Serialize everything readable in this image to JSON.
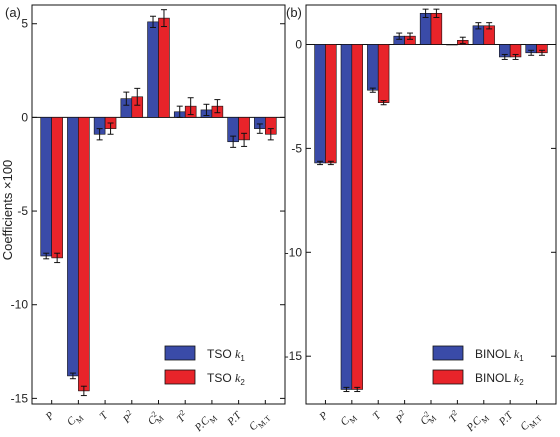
{
  "ylabel": "Coefficients ×100",
  "colors": {
    "series1": "#3a4ba8",
    "series2": "#e8242a",
    "edge": "#111111"
  },
  "chart_data": [
    {
      "type": "bar",
      "panel_label": "(a)",
      "ylabel": "Coefficients ×100",
      "ylim": [
        -15.3,
        6.0
      ],
      "yticks": [
        -15,
        -10,
        -5,
        0,
        5
      ],
      "ytick_labels": [
        "-15",
        "-10",
        "-5",
        "0",
        "5"
      ],
      "categories": [
        {
          "main": "P",
          "sup": "",
          "sub": ""
        },
        {
          "main": "C",
          "sup": "",
          "sub": "M"
        },
        {
          "main": "T",
          "sup": "",
          "sub": ""
        },
        {
          "main": "P",
          "sup": "2",
          "sub": ""
        },
        {
          "main": "C",
          "sup": "2",
          "sub": "M"
        },
        {
          "main": "T",
          "sup": "2",
          "sub": ""
        },
        {
          "main": "P.C",
          "sup": "",
          "sub": "M"
        },
        {
          "main": "P.T",
          "sup": "",
          "sub": ""
        },
        {
          "main": "C",
          "sup": "",
          "sub": "M.T"
        }
      ],
      "series": [
        {
          "name": "TSO k1",
          "legend_main": "TSO k",
          "legend_sub": "1",
          "values": [
            -7.4,
            -13.8,
            -0.9,
            1.0,
            5.1,
            0.3,
            0.4,
            -1.3,
            -0.6
          ],
          "errors": [
            0.15,
            0.15,
            0.3,
            0.35,
            0.3,
            0.3,
            0.3,
            0.3,
            0.25
          ]
        },
        {
          "name": "TSO k2",
          "legend_main": "TSO k",
          "legend_sub": "2",
          "values": [
            -7.5,
            -14.6,
            -0.6,
            1.1,
            5.3,
            0.6,
            0.6,
            -1.2,
            -0.9
          ],
          "errors": [
            0.25,
            0.25,
            0.3,
            0.45,
            0.45,
            0.45,
            0.35,
            0.35,
            0.3
          ]
        }
      ],
      "legend_position": "bottom-right"
    },
    {
      "type": "bar",
      "panel_label": "(b)",
      "ylim": [
        -17.3,
        1.9
      ],
      "yticks": [
        -15,
        -10,
        -5,
        0
      ],
      "ytick_labels": [
        "-15",
        "-10",
        "-5",
        "0"
      ],
      "categories": [
        {
          "main": "P",
          "sup": "",
          "sub": ""
        },
        {
          "main": "C",
          "sup": "",
          "sub": "M"
        },
        {
          "main": "T",
          "sup": "",
          "sub": ""
        },
        {
          "main": "P",
          "sup": "2",
          "sub": ""
        },
        {
          "main": "C",
          "sup": "2",
          "sub": "M"
        },
        {
          "main": "T",
          "sup": "2",
          "sub": ""
        },
        {
          "main": "P.C",
          "sup": "",
          "sub": "M"
        },
        {
          "main": "P.T",
          "sup": "",
          "sub": ""
        },
        {
          "main": "C",
          "sup": "",
          "sub": "M.T"
        }
      ],
      "series": [
        {
          "name": "BINOL k1",
          "legend_main": "BINOL k",
          "legend_sub": "1",
          "values": [
            -5.7,
            -16.6,
            -2.2,
            0.4,
            1.5,
            0.0,
            0.9,
            -0.6,
            -0.4
          ],
          "errors": [
            0.08,
            0.1,
            0.1,
            0.15,
            0.2,
            0.0,
            0.15,
            0.12,
            0.12
          ]
        },
        {
          "name": "BINOL k2",
          "legend_main": "BINOL k",
          "legend_sub": "2",
          "values": [
            -5.7,
            -16.6,
            -2.8,
            0.4,
            1.5,
            0.2,
            0.9,
            -0.6,
            -0.4
          ],
          "errors": [
            0.08,
            0.1,
            0.1,
            0.15,
            0.2,
            0.15,
            0.15,
            0.12,
            0.12
          ]
        }
      ],
      "legend_position": "bottom-right"
    }
  ]
}
